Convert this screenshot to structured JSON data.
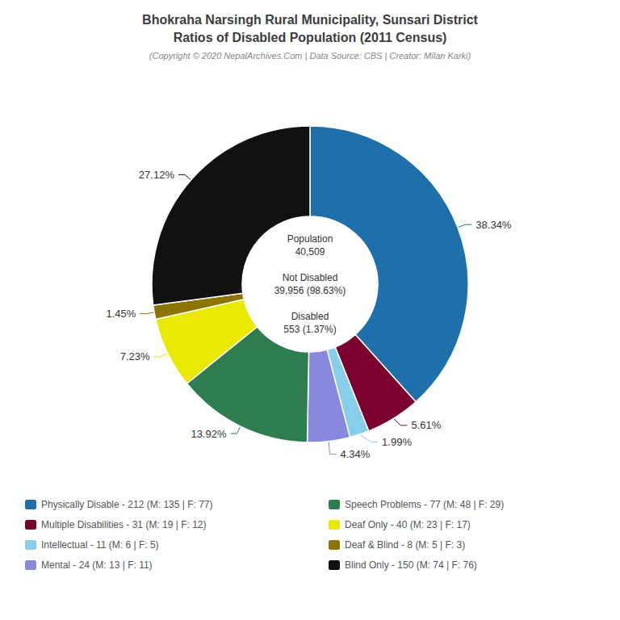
{
  "chart_data": {
    "type": "pie",
    "title": "Bhokraha Narsingh Rural Municipality, Sunsari District\nRatios of Disabled Population (2011 Census)",
    "subtitle": "(Copyright © 2020 NepalArchives.Com | Data Source: CBS | Creator: Milan Karki)",
    "categories": [
      "Physically Disable - 212 (M: 135 | F: 77)",
      "Multiple Disabilities - 31 (M: 19 | F: 12)",
      "Intellectual - 11 (M: 6 | F: 5)",
      "Mental - 24 (M: 13 | F: 11)",
      "Speech Problems - 77 (M: 48 | F: 29)",
      "Deaf Only - 40 (M: 23 | F: 17)",
      "Deaf & Blind - 8 (M: 5 | F: 3)",
      "Blind Only - 150 (M: 74 | F: 76)"
    ],
    "values": [
      38.34,
      5.61,
      1.99,
      4.34,
      13.92,
      7.23,
      1.45,
      27.12
    ],
    "value_labels": [
      "38.34%",
      "5.61%",
      "1.99%",
      "4.34%",
      "13.92%",
      "7.23%",
      "1.45%",
      "27.12%"
    ],
    "colors": [
      "#1f6fab",
      "#7a0030",
      "#87ceeb",
      "#8888dd",
      "#2e7d4f",
      "#e8e800",
      "#8b7500",
      "#111111"
    ],
    "data_labels": true,
    "annotations": [
      "Population\n40,509\n\nNot Disabled\n39,956 (98.63%)\n\nDisabled\n553 (1.37%)"
    ],
    "legend": "bottom"
  }
}
